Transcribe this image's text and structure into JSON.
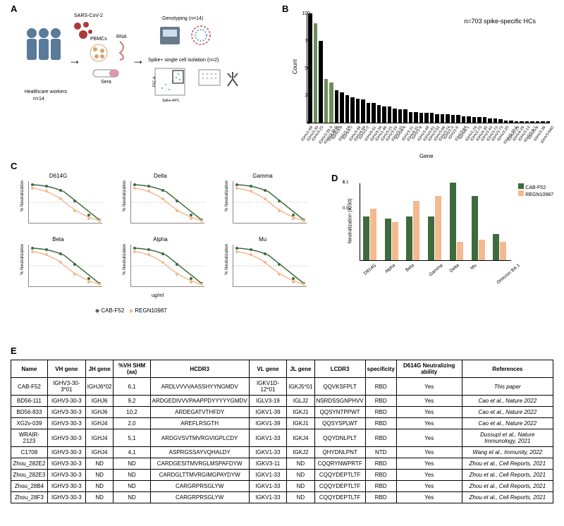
{
  "labels": {
    "A": "A",
    "B": "B",
    "C": "C",
    "D": "D",
    "E": "E"
  },
  "colors": {
    "green": "#6b8f5a",
    "black": "#000000",
    "peach": "#f4b98f",
    "darkgreen": "#3e6b3e"
  },
  "panelA": {
    "virus": "SARS-CoV-2",
    "pbmcs": "PBMCs",
    "rna": "RNA",
    "sera": "Sera",
    "healthcare": "Healthcare workers",
    "n14": "n=14",
    "genotyping": "Genotyping (n=14)",
    "spikeiso": "Spike+ single cell isolation (n=2)",
    "fsc": "FSC-A",
    "spikeapc": "Spike-APC"
  },
  "panelB": {
    "anno": "n=703 spike-specific HCs",
    "ylabel": "Count",
    "xlabel": "Gene",
    "yticks": [
      0,
      25,
      50,
      75,
      100
    ],
    "ymax": 100,
    "bars": [
      {
        "label": "IGHV1-69",
        "v": 100,
        "hl": false
      },
      {
        "label": "IGHV3-30",
        "v": 91,
        "hl": true
      },
      {
        "label": "IGHV3-23",
        "v": 75,
        "hl": false
      },
      {
        "label": "IGHV3-30-3",
        "v": 40,
        "hl": true
      },
      {
        "label": "IGHV3-30-5",
        "v": 37,
        "hl": true
      },
      {
        "label": "IGHV4-39",
        "v": 30,
        "hl": false
      },
      {
        "label": "IGHV3-9",
        "v": 28,
        "hl": false
      },
      {
        "label": "IGHV1-18",
        "v": 25,
        "hl": false
      },
      {
        "label": "IGHV3-7",
        "v": 23,
        "hl": false
      },
      {
        "label": "IGHV3-48",
        "v": 22,
        "hl": false
      },
      {
        "label": "IGHV4-59",
        "v": 21,
        "hl": false
      },
      {
        "label": "IGHV1-2",
        "v": 18,
        "hl": false
      },
      {
        "label": "IGHV5-51",
        "v": 18,
        "hl": false
      },
      {
        "label": "IGHV4-34",
        "v": 16,
        "hl": false
      },
      {
        "label": "IGHV1-46",
        "v": 15,
        "hl": false
      },
      {
        "label": "IGHV3-21",
        "v": 15,
        "hl": false
      },
      {
        "label": "IGHV3-15",
        "v": 13,
        "hl": false
      },
      {
        "label": "IGHV3-33",
        "v": 12,
        "hl": false
      },
      {
        "label": "IGHV4-4",
        "v": 12,
        "hl": false
      },
      {
        "label": "IGHV3-11",
        "v": 10,
        "hl": false
      },
      {
        "label": "IGHV4-31",
        "v": 10,
        "hl": false
      },
      {
        "label": "IGHV1-8",
        "v": 9,
        "hl": false
      },
      {
        "label": "IGHV3-49",
        "v": 9,
        "hl": false
      },
      {
        "label": "IGHV4-61",
        "v": 9,
        "hl": false
      },
      {
        "label": "IGHV3-53",
        "v": 8,
        "hl": false
      },
      {
        "label": "IGHV3-66",
        "v": 8,
        "hl": false
      },
      {
        "label": "IGHV3-74",
        "v": 8,
        "hl": false
      },
      {
        "label": "IGHV1-3",
        "v": 7,
        "hl": false
      },
      {
        "label": "IGHV2-5",
        "v": 7,
        "hl": false
      },
      {
        "label": "IGHV3-64",
        "v": 6,
        "hl": false
      },
      {
        "label": "IGHV6-1",
        "v": 6,
        "hl": false
      },
      {
        "label": "IGHV1-24",
        "v": 5,
        "hl": false
      },
      {
        "label": "IGHV2-70",
        "v": 5,
        "hl": false
      },
      {
        "label": "IGHV4-30",
        "v": 5,
        "hl": false
      },
      {
        "label": "IGHV3-43",
        "v": 4,
        "hl": false
      },
      {
        "label": "IGHV3-72",
        "v": 4,
        "hl": false
      },
      {
        "label": "IGHV3-73",
        "v": 3,
        "hl": false
      },
      {
        "label": "IGHV3-20",
        "v": 2,
        "hl": false
      },
      {
        "label": "IGHV5-10-1",
        "v": 2,
        "hl": false
      },
      {
        "label": "IGHV2-26",
        "v": 1,
        "hl": false
      },
      {
        "label": "IGHV4-28",
        "v": 1,
        "hl": false
      },
      {
        "label": "IGHV3-13",
        "v": 1,
        "hl": false
      },
      {
        "label": "IGHV7-4-1",
        "v": 1,
        "hl": false
      },
      {
        "label": "IGHV5-a",
        "v": 1,
        "hl": false
      },
      {
        "label": "IGHV3-38",
        "v": 1,
        "hl": false
      },
      {
        "label": "IGHV3-64D",
        "v": 1,
        "hl": false
      }
    ]
  },
  "panelC": {
    "ylabel": "% Neutralization",
    "xlabel": "ug/ml",
    "legend1": "CAB-F52",
    "legend2": "REGN10987",
    "subs": [
      "D614G",
      "Delta",
      "Gamma",
      "Beta",
      "Alpha",
      "Mu"
    ]
  },
  "panelD": {
    "ylabel": "Neutralization (IC50)",
    "legend1": "CAB-F52",
    "legend2": "REGN10987",
    "ymax_log": 2.2,
    "cats": [
      "D614G",
      "Alpha",
      "Beta",
      "Gamma",
      "Delta",
      "Mu",
      "Omicron BA.1"
    ],
    "series": {
      "cab": [
        0.005,
        0.004,
        0.005,
        0.005,
        0.1,
        0.03,
        0.001
      ],
      "regn": [
        0.01,
        0.003,
        0.02,
        0.03,
        0.0005,
        0.0006,
        0.0005
      ]
    }
  },
  "panelE": {
    "headers": [
      "Name",
      "VH gene",
      "JH gene",
      "%VH SHM (aa)",
      "HCDR3",
      "VL gene",
      "JL gene",
      "LCDR3",
      "specificity",
      "D614G Neutralizing ability",
      "References"
    ],
    "rows": [
      [
        "CAB-F52",
        "IGHV3-30-3*01",
        "IGHJ6*02",
        "6,1",
        "ARDLVVVVAASSHYYNGMDV",
        "IGKV1D-12*01",
        "IGKJ5*01",
        "QQVKSFPLT",
        "RBD",
        "Yes",
        "This paper"
      ],
      [
        "BD56-111",
        "IGHV3-30-3",
        "IGHJ6",
        "9,2",
        "ARDGEDIVVVPAAPPDYYYYYGMDV",
        "IGLV3-19",
        "IGLJ2",
        "NSRDSSGNPHVV",
        "RBD",
        "Yes",
        "Cao et al., Nature 2022"
      ],
      [
        "BD56-833",
        "IGHV3-30-3",
        "IGHJ6",
        "10,2",
        "ARDEGATVTHFDY",
        "IGKV1-39",
        "IGKJ1",
        "QQSYNTPPWT",
        "RBD",
        "Yes",
        "Cao et al., Nature 2022"
      ],
      [
        "XG2v-039",
        "IGHV3-30-3",
        "IGHJ4",
        "2,0",
        "AREFLRSGTH",
        "IGKV1-39",
        "IGKJ1",
        "QQSYSPLWT",
        "RBD",
        "Yes",
        "Cao et al., Nature 2022"
      ],
      [
        "WRAIR-2123",
        "IGHV3-30-3",
        "IGHJ4",
        "5,1",
        "ARDGVSVTMVRGVIGPLCDY",
        "IGKV1-33",
        "IGKJ4",
        "QQYDNLPLT",
        "RBD",
        "Yes",
        "Dussupt et al., Nature Immunology, 2021"
      ],
      [
        "C1708",
        "IGHV3-30-3",
        "IGHJ4",
        "4,1",
        "ASPRGSSAYVQHALDY",
        "IGKV1-33",
        "IGKJ2",
        "QHYDNLPNT",
        "NTD",
        "Yes",
        "Wang et al., Immunity, 2022"
      ],
      [
        "Zhou_282E2",
        "IGHV3-30-3",
        "ND",
        "ND",
        "CARDGESITMVRGLMSPAFDYW",
        "IGKV3-11",
        "ND",
        "CQQRYNWPRTF",
        "RBD",
        "Yes",
        "Zhou et al., Cell Reports, 2021"
      ],
      [
        "Zhou_282E3",
        "IGHV3-30-3",
        "ND",
        "ND",
        "CARDGLTTMVRGIMGPAYDYW",
        "IGKV1-33",
        "ND",
        "CQQYDEPTLTF",
        "RBD",
        "Yes",
        "Zhou et al., Cell Reports, 2021"
      ],
      [
        "Zhou_28B4",
        "IGHV3-30-3",
        "ND",
        "ND",
        "CARGRPRSGLYW",
        "IGKV1-33",
        "ND",
        "CQQYDEPTLTF",
        "RBD",
        "Yes",
        "Zhou et al., Cell Reports, 2021"
      ],
      [
        "Zhou_28F3",
        "IGHV3-30-3",
        "ND",
        "ND",
        "CARGRPRSGLYW",
        "IGKV1-33",
        "ND",
        "CQQYDEPTLTF",
        "RBD",
        "Yes",
        "Zhou et al., Cell Reports, 2021"
      ]
    ]
  }
}
